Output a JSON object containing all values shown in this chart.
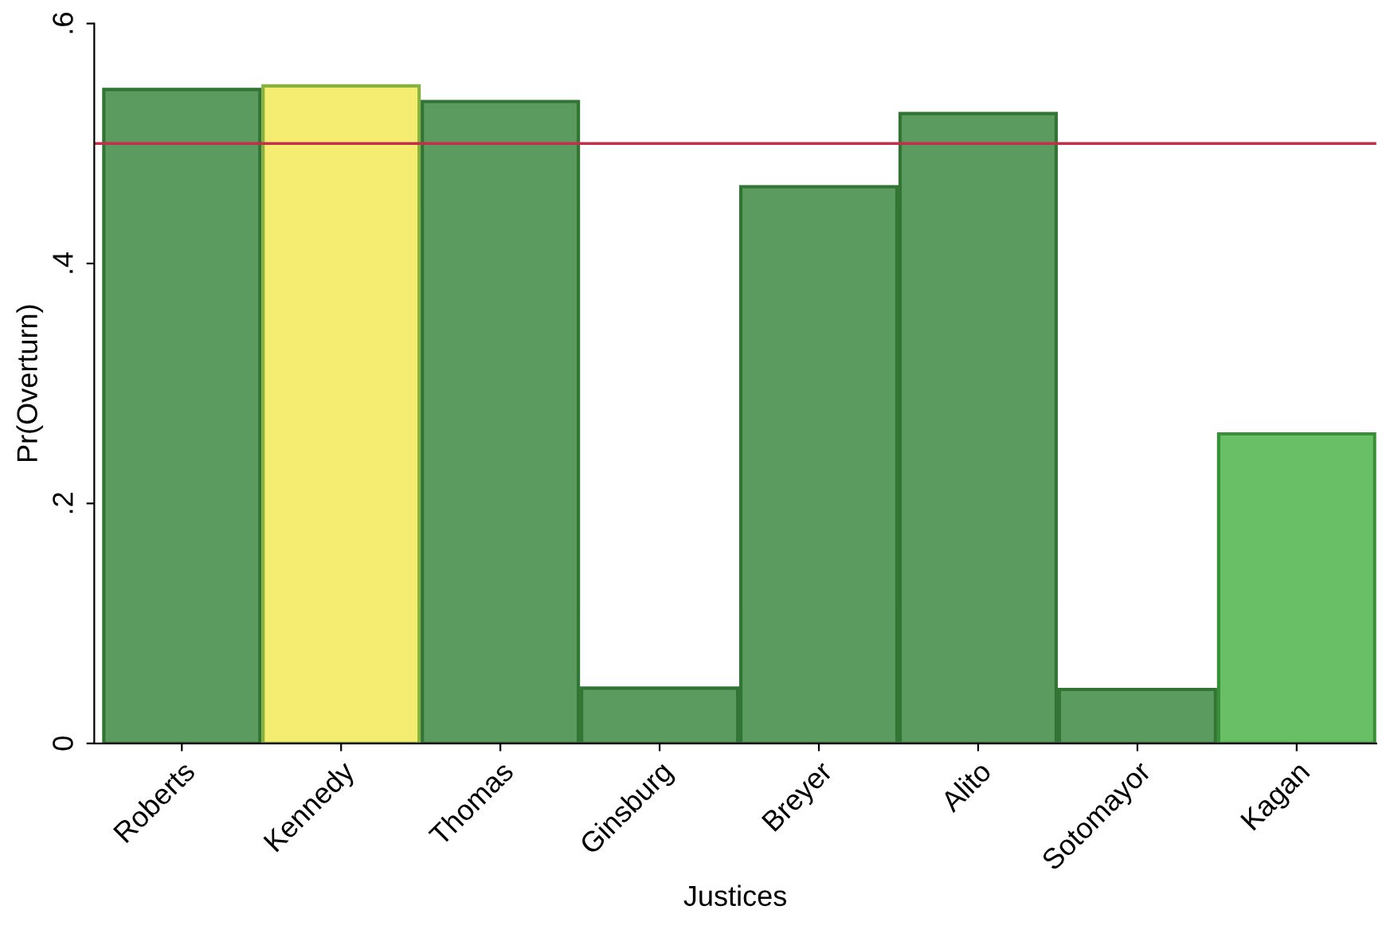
{
  "chart_data": {
    "type": "bar",
    "xlabel": "Justices",
    "ylabel": "Pr(Overturn)",
    "categories": [
      "Roberts",
      "Kennedy",
      "Thomas",
      "Ginsburg",
      "Breyer",
      "Alito",
      "Sotomayor",
      "Kagan"
    ],
    "values": [
      0.545,
      0.548,
      0.535,
      0.046,
      0.464,
      0.525,
      0.045,
      0.258
    ],
    "colors": [
      "#5b9b5f",
      "#f5ed72",
      "#5b9b5f",
      "#5b9b5f",
      "#5b9b5f",
      "#5b9b5f",
      "#5b9b5f",
      "#68bf66"
    ],
    "ylim": [
      0,
      0.6
    ],
    "yticks": [
      {
        "value": 0,
        "label": "0"
      },
      {
        "value": 0.2,
        "label": ".2"
      },
      {
        "value": 0.4,
        "label": ".4"
      },
      {
        "value": 0.6,
        "label": ".6"
      }
    ],
    "ref_lines": [
      {
        "axis": "y",
        "value": 0.5,
        "label": null,
        "color": "#c0304a"
      }
    ],
    "grid": false,
    "legend": false
  }
}
